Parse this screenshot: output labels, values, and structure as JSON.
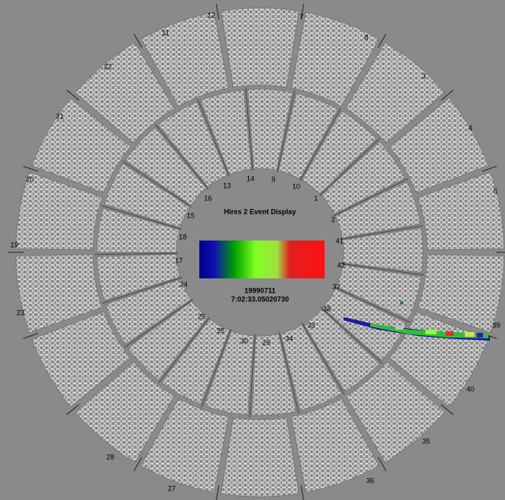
{
  "display": {
    "title": "Hires 2 Event Display",
    "date": "19990711",
    "time": "7:02:33.05020730"
  },
  "outer_ring_labels": [
    "12",
    "7",
    "11",
    "8",
    "22",
    "3",
    "21",
    "4",
    "20",
    "5",
    "19",
    "23",
    "39",
    "40",
    "28",
    "35",
    "27",
    "36"
  ],
  "inner_ring_labels": [
    "14",
    "9",
    "13",
    "10",
    "16",
    "1",
    "15",
    "2",
    "18",
    "41",
    "17",
    "42",
    "24",
    "37",
    "26",
    "38",
    "25",
    "33",
    "30",
    "34",
    "29"
  ]
}
